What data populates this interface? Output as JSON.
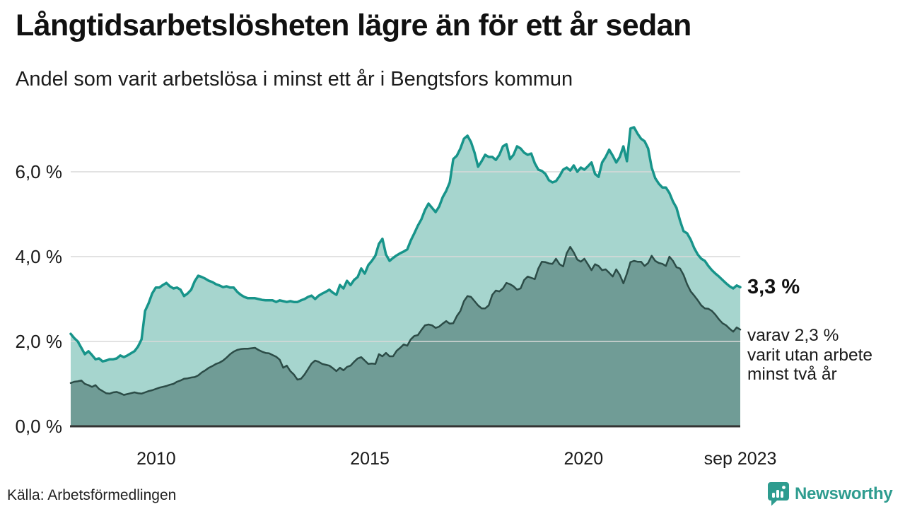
{
  "header": {
    "title": "Långtidsarbetslösheten lägre än för ett år sedan",
    "subtitle": "Andel som varit arbetslösa i minst ett år i Bengtsfors kommun"
  },
  "chart_data": {
    "type": "area",
    "title": "Långtidsarbetslösheten lägre än för ett år sedan",
    "subtitle": "Andel som varit arbetslösa i minst ett år i Bengtsfors kommun",
    "unit": "%",
    "x_start_year": 2008.0,
    "x_end_year": 2023.667,
    "x_end_label": "sep 2023",
    "ylim": [
      0,
      7.4
    ],
    "grid": "horizontal-only",
    "legend": "none",
    "y_ticks": [
      {
        "label": "0,0 %",
        "value": 0
      },
      {
        "label": "2,0 %",
        "value": 2
      },
      {
        "label": "4,0 %",
        "value": 4
      },
      {
        "label": "6,0 %",
        "value": 6
      }
    ],
    "x_ticks": [
      {
        "label": "2010",
        "year": 2010
      },
      {
        "label": "2015",
        "year": 2015
      },
      {
        "label": "2020",
        "year": 2020
      },
      {
        "label": "sep 2023",
        "year": 2023.667
      }
    ],
    "series": [
      {
        "name": "Arbetslösa minst ett år",
        "line_color": "#17948A",
        "fill_color": "#A6D5CE",
        "line_width": 3.5,
        "end_value": 3.3,
        "values": [
          2.18,
          2.08,
          2.0,
          1.85,
          1.7,
          1.77,
          1.68,
          1.58,
          1.6,
          1.53,
          1.55,
          1.58,
          1.58,
          1.6,
          1.67,
          1.63,
          1.67,
          1.72,
          1.77,
          1.88,
          2.05,
          2.72,
          2.9,
          3.13,
          3.27,
          3.27,
          3.33,
          3.38,
          3.3,
          3.25,
          3.27,
          3.22,
          3.07,
          3.13,
          3.22,
          3.42,
          3.55,
          3.52,
          3.48,
          3.43,
          3.4,
          3.35,
          3.32,
          3.28,
          3.3,
          3.27,
          3.27,
          3.17,
          3.1,
          3.05,
          3.02,
          3.02,
          3.02,
          3.0,
          2.98,
          2.97,
          2.97,
          2.97,
          2.93,
          2.97,
          2.95,
          2.93,
          2.95,
          2.93,
          2.93,
          2.97,
          3.0,
          3.05,
          3.08,
          3.0,
          3.08,
          3.13,
          3.17,
          3.22,
          3.15,
          3.1,
          3.33,
          3.25,
          3.43,
          3.33,
          3.45,
          3.52,
          3.72,
          3.6,
          3.8,
          3.9,
          4.02,
          4.3,
          4.42,
          4.05,
          3.9,
          3.97,
          4.03,
          4.08,
          4.12,
          4.17,
          4.38,
          4.55,
          4.73,
          4.88,
          5.1,
          5.25,
          5.15,
          5.05,
          5.18,
          5.4,
          5.55,
          5.75,
          6.3,
          6.38,
          6.55,
          6.78,
          6.85,
          6.7,
          6.45,
          6.12,
          6.25,
          6.4,
          6.35,
          6.35,
          6.28,
          6.4,
          6.6,
          6.65,
          6.3,
          6.4,
          6.6,
          6.55,
          6.45,
          6.4,
          6.43,
          6.2,
          6.05,
          6.02,
          5.95,
          5.8,
          5.75,
          5.78,
          5.9,
          6.05,
          6.1,
          6.03,
          6.15,
          6.0,
          6.1,
          6.05,
          6.13,
          6.22,
          5.95,
          5.88,
          6.22,
          6.35,
          6.52,
          6.38,
          6.22,
          6.35,
          6.6,
          6.25,
          7.02,
          7.05,
          6.9,
          6.78,
          6.72,
          6.55,
          6.1,
          5.85,
          5.72,
          5.63,
          5.63,
          5.5,
          5.3,
          5.15,
          4.85,
          4.6,
          4.55,
          4.4,
          4.2,
          4.05,
          3.95,
          3.9,
          3.78,
          3.68,
          3.6,
          3.53,
          3.45,
          3.37,
          3.3,
          3.25,
          3.32,
          3.28
        ]
      },
      {
        "name": "varav arbetslösa minst två år",
        "line_color": "#2C4C47",
        "fill_color": "#709C96",
        "line_width": 2.5,
        "end_value": 2.3,
        "values": [
          1.02,
          1.05,
          1.06,
          1.08,
          1.0,
          0.97,
          0.93,
          0.97,
          0.88,
          0.83,
          0.78,
          0.77,
          0.8,
          0.81,
          0.78,
          0.74,
          0.76,
          0.78,
          0.8,
          0.78,
          0.77,
          0.8,
          0.83,
          0.85,
          0.88,
          0.91,
          0.93,
          0.95,
          0.98,
          1.0,
          1.05,
          1.08,
          1.12,
          1.13,
          1.15,
          1.16,
          1.2,
          1.27,
          1.32,
          1.38,
          1.42,
          1.47,
          1.5,
          1.55,
          1.62,
          1.7,
          1.76,
          1.8,
          1.82,
          1.83,
          1.83,
          1.84,
          1.85,
          1.8,
          1.76,
          1.73,
          1.72,
          1.68,
          1.64,
          1.57,
          1.38,
          1.43,
          1.3,
          1.22,
          1.1,
          1.12,
          1.22,
          1.35,
          1.48,
          1.55,
          1.52,
          1.47,
          1.45,
          1.43,
          1.37,
          1.3,
          1.38,
          1.32,
          1.4,
          1.43,
          1.52,
          1.6,
          1.63,
          1.55,
          1.47,
          1.48,
          1.47,
          1.7,
          1.65,
          1.73,
          1.65,
          1.65,
          1.78,
          1.85,
          1.93,
          1.9,
          2.05,
          2.13,
          2.15,
          2.27,
          2.38,
          2.4,
          2.38,
          2.32,
          2.35,
          2.42,
          2.48,
          2.42,
          2.43,
          2.6,
          2.72,
          2.95,
          3.07,
          3.05,
          2.95,
          2.85,
          2.78,
          2.78,
          2.85,
          3.1,
          3.2,
          3.18,
          3.25,
          3.38,
          3.35,
          3.3,
          3.22,
          3.25,
          3.45,
          3.53,
          3.5,
          3.47,
          3.72,
          3.88,
          3.87,
          3.84,
          3.83,
          3.95,
          3.82,
          3.77,
          4.08,
          4.23,
          4.1,
          3.93,
          3.88,
          3.95,
          3.82,
          3.68,
          3.82,
          3.78,
          3.68,
          3.7,
          3.62,
          3.53,
          3.7,
          3.57,
          3.37,
          3.6,
          3.87,
          3.9,
          3.88,
          3.88,
          3.78,
          3.85,
          4.02,
          3.9,
          3.85,
          3.83,
          3.78,
          4.0,
          3.9,
          3.75,
          3.72,
          3.57,
          3.35,
          3.18,
          3.08,
          2.97,
          2.85,
          2.78,
          2.77,
          2.72,
          2.63,
          2.52,
          2.43,
          2.38,
          2.3,
          2.23,
          2.33,
          2.28
        ]
      }
    ],
    "annotation": {
      "end_value_label": "3,3 %",
      "lines": [
        "varav 2,3 %",
        "varit utan arbete",
        "minst två år"
      ]
    },
    "colors": {
      "grid": "#D9D9D9",
      "axis": "#333333",
      "text": "#1A1A1A",
      "brand": "#2E9C8F"
    }
  },
  "footer": {
    "source": "Källa: Arbetsförmedlingen",
    "brand": "Newsworthy"
  }
}
